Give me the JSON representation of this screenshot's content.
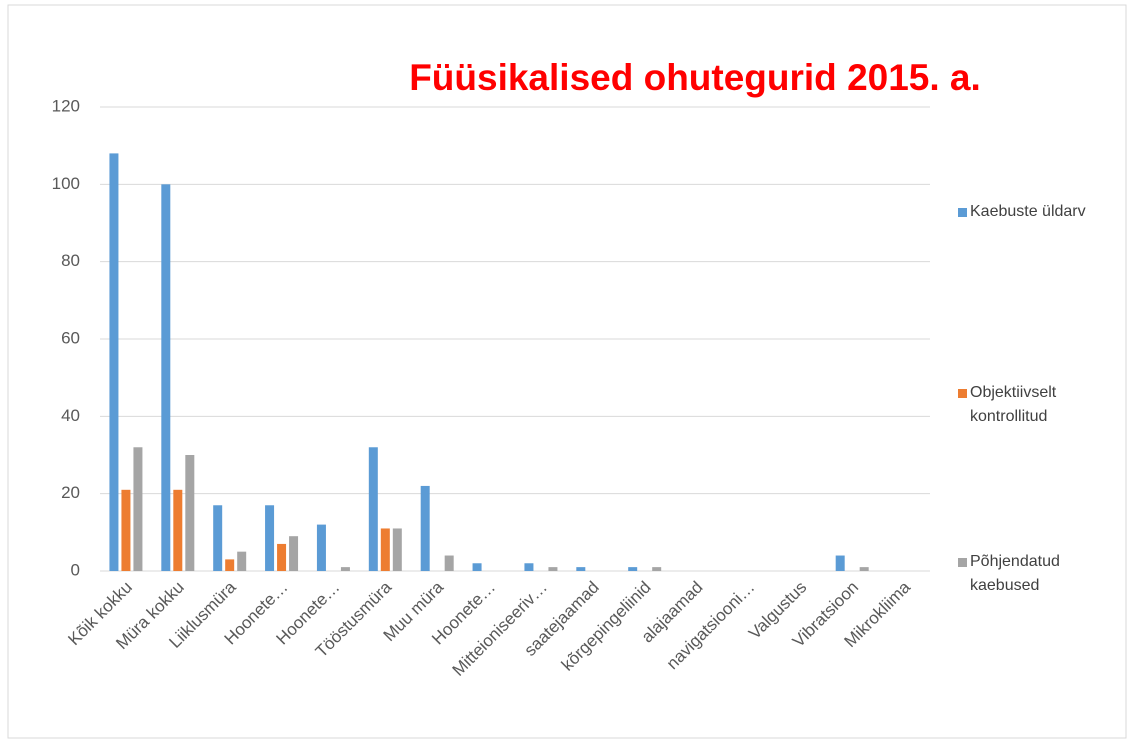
{
  "chart_data": {
    "type": "bar",
    "title": "Füüsikalised ohutegurid 2015. a.",
    "categories": [
      "Kõik kokku",
      "Müra kokku",
      "Liiklusmüra",
      "Hoonete…",
      "Hoonete…",
      "Tööstusmüra",
      "Muu müra",
      "Hoonete…",
      "Mitteioniseeriv…",
      "saatejaamad",
      "kõrgepingeliinid",
      "alajaamad",
      "navigatsiooni…",
      "Valgustus",
      "Vibratsioon",
      "Mikrokliima"
    ],
    "series": [
      {
        "name": "Kaebuste üldarv",
        "color": "#5b9bd5",
        "values": [
          108,
          100,
          17,
          17,
          12,
          32,
          22,
          2,
          2,
          1,
          1,
          0,
          0,
          0,
          4,
          0
        ]
      },
      {
        "name": "Objektiivselt kontrollitud",
        "color": "#ed7d31",
        "values": [
          21,
          21,
          3,
          7,
          0,
          11,
          0,
          0,
          0,
          0,
          0,
          0,
          0,
          0,
          0,
          0
        ]
      },
      {
        "name": "Põhjendatud kaebused",
        "color": "#a5a5a5",
        "values": [
          32,
          30,
          5,
          9,
          1,
          11,
          4,
          0,
          1,
          0,
          1,
          0,
          0,
          0,
          1,
          0
        ]
      }
    ],
    "ylim": [
      0,
      120
    ],
    "yticks": [
      0,
      20,
      40,
      60,
      80,
      100,
      120
    ],
    "grid": true,
    "legend": "right"
  }
}
